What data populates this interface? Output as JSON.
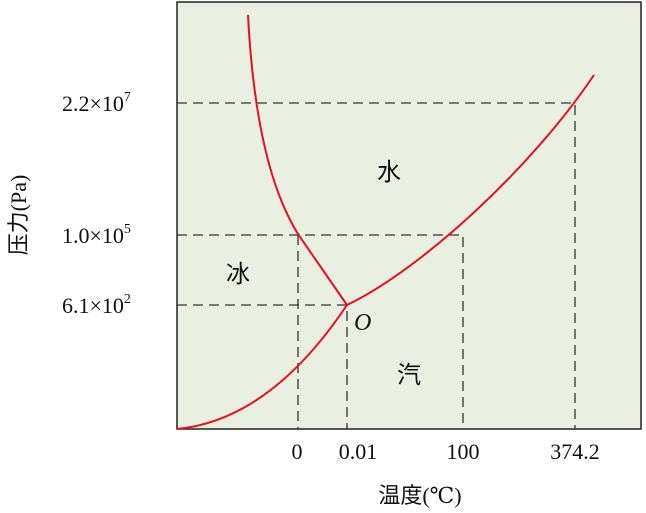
{
  "diagram": {
    "y_axis_label": "压力(Pa)",
    "x_axis_label": "温度(℃)",
    "y_ticks": [
      {
        "mantissa": "2.2×10",
        "exponent": "7"
      },
      {
        "mantissa": "1.0×10",
        "exponent": "5"
      },
      {
        "mantissa": "6.1×10",
        "exponent": "2"
      }
    ],
    "x_ticks": [
      "0",
      "0.01",
      "100",
      "374.2"
    ],
    "regions": {
      "liquid": "水",
      "solid": "冰",
      "vapor": "汽"
    },
    "triple_point_label": "O",
    "colors": {
      "background": "#e9efe1",
      "curve": "#e8101e",
      "dash": "#333333"
    }
  }
}
